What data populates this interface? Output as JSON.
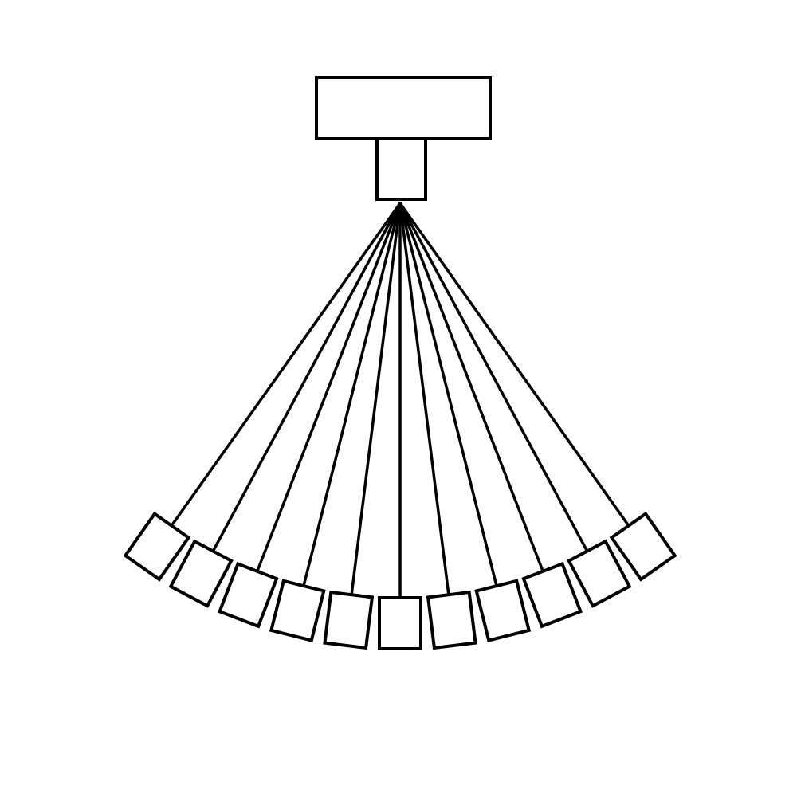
{
  "diagram": {
    "type": "fan-out",
    "hub": {
      "label": "",
      "parts": [
        "header-block",
        "neck-block"
      ]
    },
    "terminal_count": 11,
    "terminals": [
      {
        "label": ""
      },
      {
        "label": ""
      },
      {
        "label": ""
      },
      {
        "label": ""
      },
      {
        "label": ""
      },
      {
        "label": ""
      },
      {
        "label": ""
      },
      {
        "label": ""
      },
      {
        "label": ""
      },
      {
        "label": ""
      },
      {
        "label": ""
      }
    ],
    "colors": {
      "stroke": "#000000",
      "fill": "#ffffff",
      "background": "#ffffff"
    }
  }
}
